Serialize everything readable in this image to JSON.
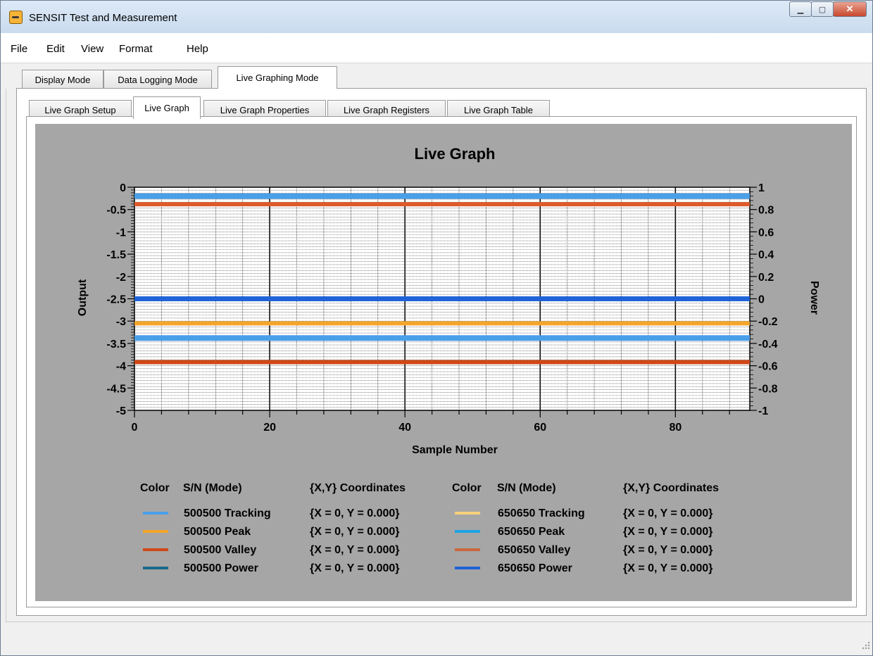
{
  "window": {
    "title": "SENSIT Test and Measurement"
  },
  "menu": [
    "File",
    "Edit",
    "View",
    "Format",
    "Help"
  ],
  "main_tabs": [
    "Display Mode",
    "Data Logging Mode",
    "Live Graphing Mode"
  ],
  "sub_tabs": [
    "Live Graph Setup",
    "Live Graph",
    "Live Graph Properties",
    "Live Graph Registers",
    "Live Graph Table"
  ],
  "chart_data": {
    "type": "line",
    "title": "Live Graph",
    "xlabel": "Sample Number",
    "ylabel": "Output",
    "y2label": "Power",
    "xlim": [
      0,
      91
    ],
    "ylim": [
      -5,
      0
    ],
    "y2lim": [
      -1,
      1
    ],
    "x_ticks": [
      "0",
      "20",
      "40",
      "60",
      "80"
    ],
    "y_ticks": [
      "0",
      "-0.5",
      "-1",
      "-1.5",
      "-2",
      "-2.5",
      "-3",
      "-3.5",
      "-4",
      "-4.5",
      "-5"
    ],
    "y2_ticks": [
      "1",
      "0.8",
      "0.6",
      "0.4",
      "0.2",
      "0",
      "-0.2",
      "-0.4",
      "-0.6",
      "-0.8",
      "-1"
    ],
    "grid": true,
    "series_lines": [
      {
        "y": -0.2,
        "color": "#4a9fe9",
        "width": 8
      },
      {
        "y": -0.38,
        "color": "#dd5a2a",
        "width": 6
      },
      {
        "y": -2.5,
        "color": "#1f63d8",
        "width": 7
      },
      {
        "y": -3.05,
        "color": "#f4a52b",
        "width": 6
      },
      {
        "y": -3.38,
        "color": "#4a9fe9",
        "width": 8
      },
      {
        "y": -3.92,
        "color": "#d04818",
        "width": 6
      }
    ]
  },
  "legend": {
    "headers": {
      "color": "Color",
      "sn": "S/N (Mode)",
      "coords": "{X,Y} Coordinates"
    },
    "left": [
      {
        "name": "500500 Tracking",
        "coords": "{X = 0, Y = 0.000}",
        "color": "#4a9fe9"
      },
      {
        "name": "500500 Peak",
        "coords": "{X = 0, Y = 0.000}",
        "color": "#f4a52b"
      },
      {
        "name": "500500 Valley",
        "coords": "{X = 0, Y = 0.000}",
        "color": "#d04818"
      },
      {
        "name": "500500 Power",
        "coords": "{X = 0, Y = 0.000}",
        "color": "#1a6a8a"
      }
    ],
    "right": [
      {
        "name": "650650 Tracking",
        "coords": "{X = 0, Y = 0.000}",
        "color": "#f7d07a"
      },
      {
        "name": "650650 Peak",
        "coords": "{X = 0, Y = 0.000}",
        "color": "#1fa3e6"
      },
      {
        "name": "650650 Valley",
        "coords": "{X = 0, Y = 0.000}",
        "color": "#c9683e"
      },
      {
        "name": "650650 Power",
        "coords": "{X = 0, Y = 0.000}",
        "color": "#1f63d8"
      }
    ]
  }
}
